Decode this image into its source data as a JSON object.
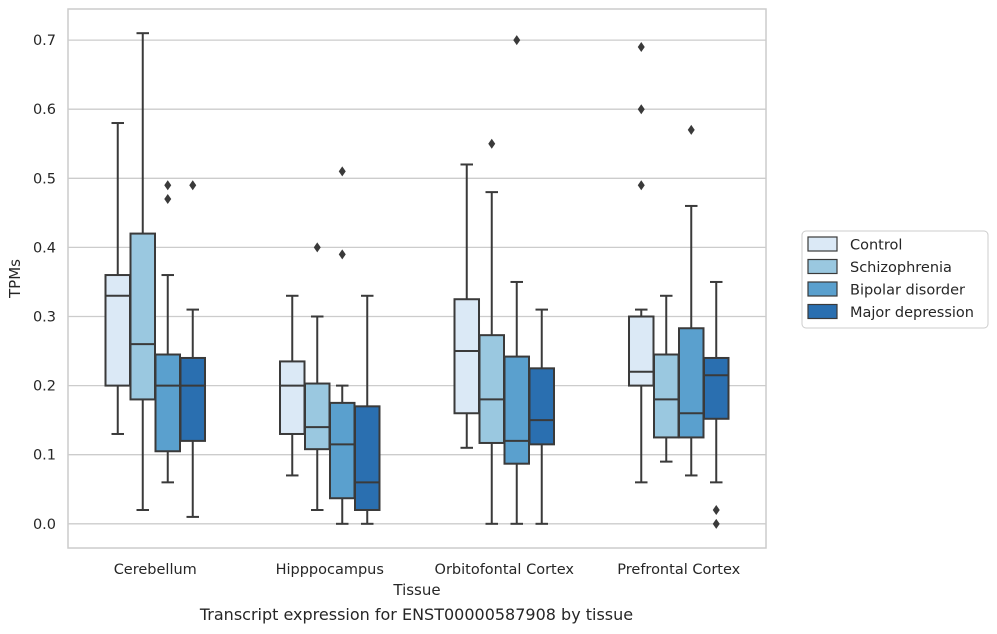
{
  "chart_data": {
    "type": "boxplot",
    "title": "",
    "caption": "Transcript expression for ENST00000587908 by tissue",
    "xlabel": "Tissue",
    "ylabel": "TPMs",
    "ylim": [
      -0.035,
      0.745
    ],
    "yticks": [
      0.0,
      0.1,
      0.2,
      0.3,
      0.4,
      0.5,
      0.6,
      0.7
    ],
    "ytick_labels": [
      "0.0",
      "0.1",
      "0.2",
      "0.3",
      "0.4",
      "0.5",
      "0.6",
      "0.7"
    ],
    "grid": true,
    "legend_placement": "right",
    "categories": [
      "Cerebellum",
      "Hipppocampus",
      "Orbitofontal Cortex",
      "Prefrontal Cortex"
    ],
    "series": [
      {
        "name": "Control",
        "color": "#dbe9f6",
        "boxes": [
          {
            "whislo": 0.13,
            "q1": 0.2,
            "med": 0.33,
            "q3": 0.36,
            "whishi": 0.58,
            "fliers": []
          },
          {
            "whislo": 0.07,
            "q1": 0.13,
            "med": 0.2,
            "q3": 0.235,
            "whishi": 0.33,
            "fliers": []
          },
          {
            "whislo": 0.11,
            "q1": 0.16,
            "med": 0.25,
            "q3": 0.325,
            "whishi": 0.52,
            "fliers": []
          },
          {
            "whislo": 0.06,
            "q1": 0.2,
            "med": 0.22,
            "q3": 0.3,
            "whishi": 0.31,
            "fliers": [
              0.49,
              0.6,
              0.69
            ]
          }
        ]
      },
      {
        "name": "Schizophrenia",
        "color": "#9ac8e0",
        "boxes": [
          {
            "whislo": 0.02,
            "q1": 0.18,
            "med": 0.26,
            "q3": 0.42,
            "whishi": 0.71,
            "fliers": []
          },
          {
            "whislo": 0.02,
            "q1": 0.108,
            "med": 0.14,
            "q3": 0.203,
            "whishi": 0.3,
            "fliers": [
              0.4
            ]
          },
          {
            "whislo": 0.0,
            "q1": 0.117,
            "med": 0.18,
            "q3": 0.273,
            "whishi": 0.48,
            "fliers": [
              0.55
            ]
          },
          {
            "whislo": 0.09,
            "q1": 0.125,
            "med": 0.18,
            "q3": 0.245,
            "whishi": 0.33,
            "fliers": []
          }
        ]
      },
      {
        "name": "Bipolar disorder",
        "color": "#5aa0ce",
        "boxes": [
          {
            "whislo": 0.06,
            "q1": 0.105,
            "med": 0.2,
            "q3": 0.245,
            "whishi": 0.36,
            "fliers": [
              0.47,
              0.49
            ]
          },
          {
            "whislo": 0.0,
            "q1": 0.037,
            "med": 0.115,
            "q3": 0.175,
            "whishi": 0.2,
            "fliers": [
              0.39,
              0.51
            ]
          },
          {
            "whislo": 0.0,
            "q1": 0.087,
            "med": 0.12,
            "q3": 0.242,
            "whishi": 0.35,
            "fliers": [
              0.7
            ]
          },
          {
            "whislo": 0.07,
            "q1": 0.125,
            "med": 0.16,
            "q3": 0.283,
            "whishi": 0.46,
            "fliers": [
              0.57
            ]
          }
        ]
      },
      {
        "name": "Major depression",
        "color": "#2a6fb0",
        "boxes": [
          {
            "whislo": 0.01,
            "q1": 0.12,
            "med": 0.2,
            "q3": 0.24,
            "whishi": 0.31,
            "fliers": [
              0.49
            ]
          },
          {
            "whislo": 0.0,
            "q1": 0.02,
            "med": 0.06,
            "q3": 0.17,
            "whishi": 0.33,
            "fliers": []
          },
          {
            "whislo": 0.0,
            "q1": 0.115,
            "med": 0.15,
            "q3": 0.225,
            "whishi": 0.31,
            "fliers": []
          },
          {
            "whislo": 0.06,
            "q1": 0.152,
            "med": 0.215,
            "q3": 0.24,
            "whishi": 0.35,
            "fliers": [
              0.0,
              0.02
            ]
          }
        ]
      }
    ]
  }
}
